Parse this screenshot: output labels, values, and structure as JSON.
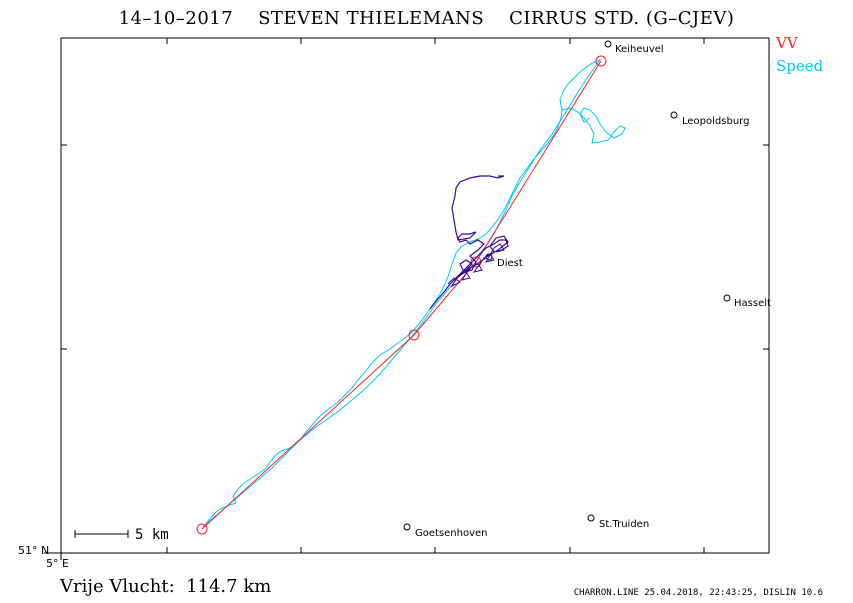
{
  "header": {
    "title": "14–10–2017    STEVEN THIELEMANS    CIRRUS STD. (G–CJEV)"
  },
  "legend": {
    "vv_label": "VV",
    "vv_color": "#ff2020",
    "speed_label": "Speed",
    "speed_color": "#00c8ff",
    "thermal_color": "#3a0a9a"
  },
  "axes": {
    "lat_label": "51° N",
    "lon_label": "5° E"
  },
  "scale_bar": {
    "label": "5 km"
  },
  "places": [
    {
      "name": "Keiheuvel"
    },
    {
      "name": "Leopoldsburg"
    },
    {
      "name": "Diest"
    },
    {
      "name": "Hasselt"
    },
    {
      "name": "Goetsenhoven"
    },
    {
      "name": "St.Truiden"
    }
  ],
  "flight": {
    "distance_text": "Vrije Vlucht:  114.7 km"
  },
  "footer": {
    "text": "CHARRON.LINE 25.04.2018, 22:43:25, DISLIN 10.6"
  }
}
